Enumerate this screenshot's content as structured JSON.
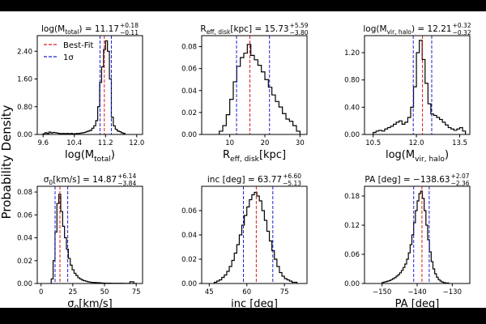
{
  "figure": {
    "ylabel": "Probability Density",
    "legend": {
      "best_fit": "Best-Fit",
      "sigma": "1σ"
    }
  },
  "chart_data": [
    {
      "type": "histogram",
      "title": "log(M_total) = 11.17 +0.18 −0.11",
      "title_parts": {
        "main": "log(M",
        "sub": "total",
        "tail": ") = 11.17",
        "sup": "+0.18",
        "low": "−0.11"
      },
      "xlabel": "log(M_total)",
      "xlabel_parts": {
        "main": "log(M",
        "sub": "total",
        "tail": ")"
      },
      "xlim": [
        9.45,
        12.15
      ],
      "ylim": [
        0,
        2.85
      ],
      "xticks": [
        9.6,
        10.4,
        11.2,
        12.0
      ],
      "xticklabels": [
        "9.6",
        "10.4",
        "11.2",
        "12.0"
      ],
      "yticks": [
        0.0,
        0.8,
        1.6,
        2.4
      ],
      "yticklabels": [
        "0.00",
        "0.80",
        "1.60",
        "2.40"
      ],
      "best_fit": 11.17,
      "sigma_low": 11.06,
      "sigma_high": 11.35,
      "legend": true,
      "bins": [
        9.6,
        9.65,
        9.7,
        9.75,
        9.8,
        9.85,
        9.9,
        9.95,
        10.0,
        10.05,
        10.1,
        10.15,
        10.2,
        10.25,
        10.3,
        10.35,
        10.4,
        10.45,
        10.5,
        10.55,
        10.6,
        10.65,
        10.7,
        10.75,
        10.8,
        10.85,
        10.9,
        10.95,
        11.0,
        11.05,
        11.1,
        11.15,
        11.2,
        11.25,
        11.3,
        11.35,
        11.4,
        11.45,
        11.5,
        11.55,
        11.6,
        11.65,
        11.7
      ],
      "counts": [
        0.02,
        0.05,
        0.03,
        0.07,
        0.04,
        0.06,
        0.05,
        0.04,
        0.03,
        0.02,
        0.03,
        0.02,
        0.03,
        0.02,
        0.03,
        0.02,
        0.02,
        0.03,
        0.03,
        0.04,
        0.05,
        0.06,
        0.08,
        0.1,
        0.12,
        0.18,
        0.25,
        0.4,
        0.8,
        1.5,
        1.95,
        2.45,
        2.7,
        2.4,
        1.6,
        0.5,
        0.25,
        0.15,
        0.1,
        0.08,
        0.05,
        0.03
      ]
    },
    {
      "type": "histogram",
      "title": "R_eff,disk[kpc] = 15.73 +5.59 −3.80",
      "title_parts": {
        "main": "R",
        "sub": "eff, disk",
        "tail": "[kpc] = 15.73",
        "sup": "+5.59",
        "low": "−3.80"
      },
      "xlabel": "R_eff,disk[kpc]",
      "xlabel_parts": {
        "main": "R",
        "sub": "eff, disk",
        "tail": "[kpc]"
      },
      "xlim": [
        2,
        32
      ],
      "ylim": [
        0,
        0.09
      ],
      "xticks": [
        10,
        20,
        30
      ],
      "xticklabels": [
        "10",
        "20",
        "30"
      ],
      "yticks": [
        0.0,
        0.02,
        0.04,
        0.06,
        0.08
      ],
      "yticklabels": [
        "0.00",
        "0.02",
        "0.04",
        "0.06",
        "0.08"
      ],
      "best_fit": 15.73,
      "sigma_low": 11.93,
      "sigma_high": 21.32,
      "legend": false,
      "bins": [
        7,
        8,
        9,
        10,
        11,
        12,
        13,
        14,
        15,
        16,
        17,
        18,
        19,
        20,
        21,
        22,
        23,
        24,
        25,
        26,
        27,
        28,
        29,
        30
      ],
      "counts": [
        0.003,
        0.008,
        0.018,
        0.032,
        0.048,
        0.062,
        0.07,
        0.074,
        0.082,
        0.072,
        0.068,
        0.063,
        0.057,
        0.05,
        0.043,
        0.036,
        0.03,
        0.025,
        0.019,
        0.014,
        0.012,
        0.008,
        0.003
      ]
    },
    {
      "type": "histogram",
      "title": "log(M_vir,halo) = 12.21 +0.32 −0.32",
      "title_parts": {
        "main": "log(M",
        "sub": "vir, halo",
        "tail": ") = 12.21",
        "sup": "+0.32",
        "low": "−0.32"
      },
      "xlabel": "log(M_vir,halo)",
      "xlabel_parts": {
        "main": "log(M",
        "sub": "vir, halo",
        "tail": ")"
      },
      "xlim": [
        10.2,
        13.85
      ],
      "ylim": [
        0,
        1.45
      ],
      "xticks": [
        10.5,
        12.0,
        13.5
      ],
      "xticklabels": [
        "10.5",
        "12.0",
        "13.5"
      ],
      "yticks": [
        0.0,
        0.4,
        0.8,
        1.2
      ],
      "yticklabels": [
        "0.00",
        "0.40",
        "0.80",
        "1.20"
      ],
      "best_fit": 12.21,
      "sigma_low": 11.89,
      "sigma_high": 12.53,
      "legend": false,
      "bins": [
        10.5,
        10.6,
        10.7,
        10.8,
        10.9,
        11.0,
        11.1,
        11.2,
        11.3,
        11.4,
        11.5,
        11.6,
        11.7,
        11.8,
        11.9,
        12.0,
        12.1,
        12.2,
        12.3,
        12.4,
        12.5,
        12.6,
        12.7,
        12.8,
        12.9,
        13.0,
        13.1,
        13.2,
        13.3,
        13.4,
        13.5,
        13.6,
        13.7
      ],
      "counts": [
        0.03,
        0.05,
        0.06,
        0.05,
        0.08,
        0.1,
        0.12,
        0.15,
        0.18,
        0.2,
        0.15,
        0.18,
        0.25,
        0.4,
        0.7,
        1.2,
        1.38,
        1.1,
        0.75,
        0.45,
        0.3,
        0.28,
        0.25,
        0.22,
        0.18,
        0.14,
        0.1,
        0.08,
        0.06,
        0.08,
        0.1,
        0.05
      ]
    },
    {
      "type": "histogram",
      "title": "σ0[km/s] = 14.87 +6.14 −3.84",
      "title_parts": {
        "main": "σ",
        "sub": "0",
        "tail": "[km/s] = 14.87",
        "sup": "+6.14",
        "low": "−3.84"
      },
      "xlabel": "σ0[km/s]",
      "xlabel_parts": {
        "main": "σ",
        "sub": "0",
        "tail": "[km/s]"
      },
      "xlim": [
        -3,
        80
      ],
      "ylim": [
        0,
        0.085
      ],
      "xticks": [
        0,
        25,
        50,
        75
      ],
      "xticklabels": [
        "0",
        "25",
        "50",
        "75"
      ],
      "yticks": [
        0.0,
        0.02,
        0.04,
        0.06,
        0.08
      ],
      "yticklabels": [
        "0.00",
        "0.02",
        "0.04",
        "0.06",
        "0.08"
      ],
      "best_fit": 14.87,
      "sigma_low": 11.03,
      "sigma_high": 21.01,
      "legend": false,
      "bins": [
        8,
        9.5,
        11,
        12.5,
        14,
        15.5,
        17,
        18.5,
        20,
        21.5,
        23,
        24.5,
        26,
        27.5,
        29,
        30.5,
        32,
        33.5,
        35,
        36.5,
        38,
        39.5,
        41,
        42.5,
        44,
        45.5,
        47,
        48.5,
        50,
        55,
        60,
        65,
        70,
        73,
        75
      ],
      "counts": [
        0.004,
        0.02,
        0.045,
        0.07,
        0.078,
        0.063,
        0.05,
        0.04,
        0.03,
        0.022,
        0.016,
        0.012,
        0.009,
        0.007,
        0.005,
        0.004,
        0.003,
        0.0025,
        0.002,
        0.0015,
        0.0012,
        0.001,
        0.0009,
        0.0008,
        0.0007,
        0.0006,
        0.0005,
        0.0004,
        0.0003,
        0.0002,
        0.0002,
        0.0001,
        0.0015,
        0.0001
      ]
    },
    {
      "type": "histogram",
      "title": "inc [deg] = 63.77 +6.60 −5.13",
      "title_parts": {
        "main": "inc [deg] = 63.77",
        "sub": "",
        "tail": "",
        "sup": "+6.60",
        "low": "−5.13"
      },
      "xlabel": "inc [deg]",
      "xlabel_parts": {
        "main": "inc [deg]",
        "sub": "",
        "tail": ""
      },
      "xlim": [
        42,
        84
      ],
      "ylim": [
        0,
        0.08
      ],
      "xticks": [
        45,
        60,
        75
      ],
      "xticklabels": [
        "45",
        "60",
        "75"
      ],
      "yticks": [
        0.0,
        0.02,
        0.04,
        0.06
      ],
      "yticklabels": [
        "0.00",
        "0.02",
        "0.04",
        "0.06"
      ],
      "best_fit": 63.77,
      "sigma_low": 58.64,
      "sigma_high": 70.37,
      "legend": false,
      "bins": [
        47,
        48,
        49,
        50,
        51,
        52,
        53,
        54,
        55,
        56,
        57,
        58,
        59,
        60,
        61,
        62,
        63,
        64,
        65,
        66,
        67,
        68,
        69,
        70,
        71,
        72,
        73,
        74,
        75,
        76,
        77,
        78,
        79,
        80
      ],
      "counts": [
        0.001,
        0.002,
        0.003,
        0.005,
        0.007,
        0.01,
        0.014,
        0.019,
        0.025,
        0.032,
        0.04,
        0.048,
        0.056,
        0.063,
        0.069,
        0.073,
        0.075,
        0.072,
        0.068,
        0.06,
        0.052,
        0.043,
        0.035,
        0.027,
        0.02,
        0.014,
        0.009,
        0.006,
        0.004,
        0.003,
        0.002,
        0.001,
        0.001
      ]
    },
    {
      "type": "histogram",
      "title": "PA [deg] = −138.63 +2.07 −2.36",
      "title_parts": {
        "main": "PA [deg] = −138.63",
        "sub": "",
        "tail": "",
        "sup": "+2.07",
        "low": "−2.36"
      },
      "xlabel": "PA [deg]",
      "xlabel_parts": {
        "main": "PA [deg]",
        "sub": "",
        "tail": ""
      },
      "xlim": [
        -155,
        -125
      ],
      "ylim": [
        0,
        0.2
      ],
      "xticks": [
        -150,
        -140,
        -130
      ],
      "xticklabels": [
        "−150",
        "−140",
        "−130"
      ],
      "yticks": [
        0.0,
        0.06,
        0.12,
        0.18
      ],
      "yticklabels": [
        "0.00",
        "0.06",
        "0.12",
        "0.18"
      ],
      "best_fit": -138.63,
      "sigma_low": -140.99,
      "sigma_high": -136.56,
      "legend": false,
      "bins": [
        -150,
        -149.5,
        -149,
        -148.5,
        -148,
        -147.5,
        -147,
        -146.5,
        -146,
        -145.5,
        -145,
        -144.5,
        -144,
        -143.5,
        -143,
        -142.5,
        -142,
        -141.5,
        -141,
        -140.5,
        -140,
        -139.5,
        -139,
        -138.5,
        -138,
        -137.5,
        -137,
        -136.5,
        -136,
        -135.5,
        -135,
        -134.5,
        -134,
        -133.5,
        -133,
        -132.5,
        -132,
        -131.5,
        -131
      ],
      "counts": [
        0.002,
        0.003,
        0.004,
        0.005,
        0.006,
        0.008,
        0.01,
        0.012,
        0.015,
        0.018,
        0.022,
        0.027,
        0.033,
        0.04,
        0.05,
        0.063,
        0.08,
        0.1,
        0.125,
        0.15,
        0.17,
        0.185,
        0.19,
        0.175,
        0.15,
        0.12,
        0.09,
        0.065,
        0.045,
        0.03,
        0.02,
        0.013,
        0.008,
        0.005,
        0.003,
        0.002,
        0.001,
        0.001
      ]
    }
  ]
}
